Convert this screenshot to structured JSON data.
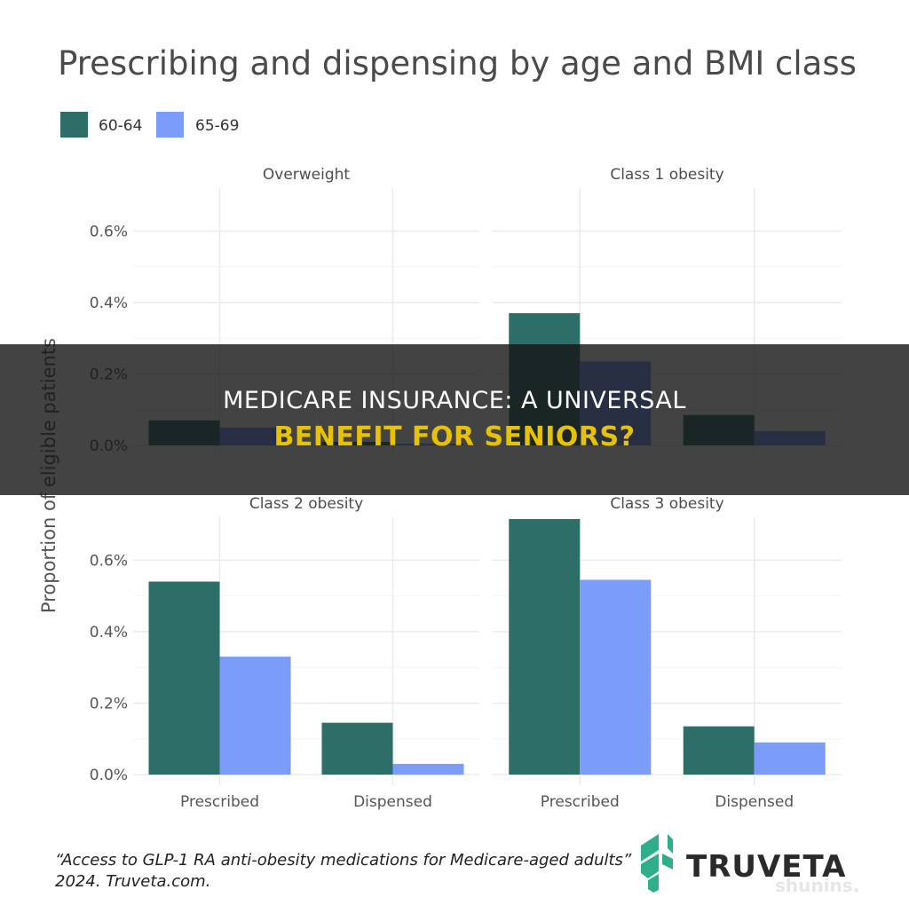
{
  "chart_data": {
    "type": "bar",
    "title": "Prescribing and dispensing by age and BMI class",
    "ylabel": "Proportion of eligible patients",
    "xlabel": "",
    "categories": [
      "Prescribed",
      "Dispensed"
    ],
    "y_ticks": [
      "0.0%",
      "0.2%",
      "0.4%",
      "0.6%"
    ],
    "y_tick_values": [
      0,
      0.2,
      0.4,
      0.6
    ],
    "ylim": [
      0,
      0.72
    ],
    "grid": true,
    "legend_position": "top-left",
    "series_meta": [
      {
        "name": "60-64",
        "color": "#2e6e69"
      },
      {
        "name": "65-69",
        "color": "#7b9df9"
      }
    ],
    "facets": [
      {
        "name": "Overweight",
        "series": [
          {
            "name": "60-64",
            "values": [
              0.07,
              0.01
            ]
          },
          {
            "name": "65-69",
            "values": [
              0.05,
              0.005
            ]
          }
        ]
      },
      {
        "name": "Class 1 obesity",
        "series": [
          {
            "name": "60-64",
            "values": [
              0.37,
              0.085
            ]
          },
          {
            "name": "65-69",
            "values": [
              0.235,
              0.04
            ]
          }
        ]
      },
      {
        "name": "Class 2 obesity",
        "series": [
          {
            "name": "60-64",
            "values": [
              0.54,
              0.145
            ]
          },
          {
            "name": "65-69",
            "values": [
              0.33,
              0.03
            ]
          }
        ]
      },
      {
        "name": "Class 3 obesity",
        "series": [
          {
            "name": "60-64",
            "values": [
              0.715,
              0.135
            ]
          },
          {
            "name": "65-69",
            "values": [
              0.545,
              0.09
            ]
          }
        ]
      }
    ]
  },
  "caption": {
    "line1": "“Access to GLP-1 RA anti-obesity medications for Medicare-aged adults”",
    "line2": "2024. Truveta.com."
  },
  "logo": {
    "text": "TRUVETA",
    "color": "#2fae8c"
  },
  "banner": {
    "line1": "MEDICARE INSURANCE: A UNIVERSAL",
    "line2": "BENEFIT FOR SENIORS?"
  },
  "watermark": "shunins."
}
